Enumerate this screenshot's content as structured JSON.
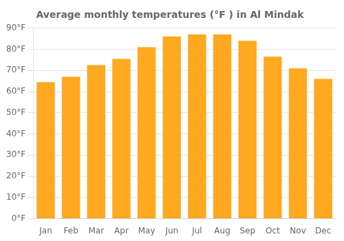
{
  "chart_data": {
    "type": "bar",
    "title": "Average monthly temperatures (°F ) in Al Mindak",
    "categories": [
      "Jan",
      "Feb",
      "Mar",
      "Apr",
      "May",
      "Jun",
      "Jul",
      "Aug",
      "Sep",
      "Oct",
      "Nov",
      "Dec"
    ],
    "values": [
      64.5,
      67,
      72.5,
      75.5,
      81,
      86,
      87,
      87,
      84,
      76.5,
      71,
      66
    ],
    "color": "#FFA820",
    "ylim": [
      0,
      90
    ],
    "yticks": [
      {
        "value": 0,
        "label": "0°F"
      },
      {
        "value": 10,
        "label": "10°F"
      },
      {
        "value": 20,
        "label": "20°F"
      },
      {
        "value": 30,
        "label": "30°F"
      },
      {
        "value": 40,
        "label": "40°F"
      },
      {
        "value": 50,
        "label": "50°F"
      },
      {
        "value": 60,
        "label": "60°F"
      },
      {
        "value": 70,
        "label": "70°F"
      },
      {
        "value": 80,
        "label": "80°F"
      },
      {
        "value": 90,
        "label": "90°F"
      }
    ],
    "grid": true
  }
}
